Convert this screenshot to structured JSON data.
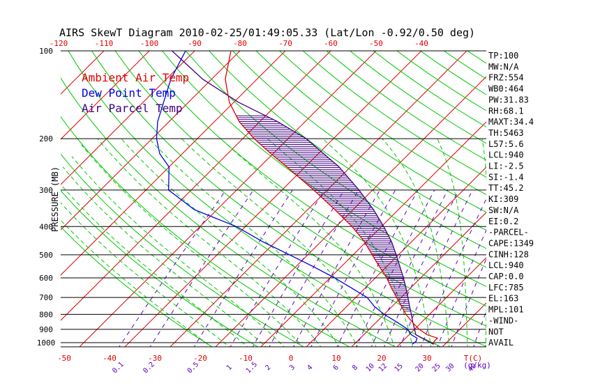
{
  "chart_data": {
    "type": "skewt",
    "title": "AIRS SkewT Diagram 2010-02-25/01:49:05.33 (Lat/Lon -0.92/0.50 deg)",
    "ylabel": "PRESSURE (MB)",
    "pressure_ticks": [
      "100",
      "200",
      "300",
      "400",
      "500",
      "600",
      "700",
      "800",
      "900",
      "1000"
    ],
    "pressure_levels": [
      100,
      200,
      300,
      400,
      500,
      600,
      700,
      800,
      900,
      1000
    ],
    "top_temp_ticks": [
      "-120",
      "-110",
      "-100",
      "-90",
      "-80",
      "-70",
      "-60",
      "-50",
      "-40"
    ],
    "bottom_temp_ticks": [
      "-50",
      "-40",
      "-30",
      "-20",
      "-10",
      "0",
      "10",
      "20",
      "30"
    ],
    "bottom_temp_unit": "T(C)",
    "mixing_ratio_ticks": [
      "0.1",
      "0.2",
      "0.5",
      "1",
      "1.5",
      "2",
      "3",
      "4",
      "6",
      "8",
      "10",
      "12",
      "15",
      "20",
      "25",
      "30",
      "40"
    ],
    "mixing_ratio_unit": "(g/kg)",
    "legend": [
      {
        "label": "Ambient Air Temp",
        "color": "#e00000"
      },
      {
        "label": "Dew Point Temp",
        "color": "#0000e0"
      },
      {
        "label": "Air Parcel Temp",
        "color": "#400080"
      }
    ],
    "colors": {
      "isotherm": "#e00000",
      "dry_adiabat": "#00c800",
      "moist_adiabat": "#00c800",
      "mixing_ratio": "#6000c0",
      "isobar": "#000000",
      "cape_hatch": "#400080"
    },
    "ambient_temp": [
      {
        "p": 1013,
        "t": 27.5
      },
      {
        "p": 990,
        "t": 27.0
      },
      {
        "p": 965,
        "t": 27.0
      },
      {
        "p": 940,
        "t": 24.0
      },
      {
        "p": 900,
        "t": 21.0
      },
      {
        "p": 860,
        "t": 18.5
      },
      {
        "p": 800,
        "t": 14.8
      },
      {
        "p": 750,
        "t": 12.0
      },
      {
        "p": 700,
        "t": 9.0
      },
      {
        "p": 650,
        "t": 5.8
      },
      {
        "p": 600,
        "t": 2.5
      },
      {
        "p": 550,
        "t": -1.5
      },
      {
        "p": 500,
        "t": -5.8
      },
      {
        "p": 450,
        "t": -10.5
      },
      {
        "p": 400,
        "t": -16.5
      },
      {
        "p": 350,
        "t": -24.0
      },
      {
        "p": 300,
        "t": -33.0
      },
      {
        "p": 250,
        "t": -44.0
      },
      {
        "p": 225,
        "t": -50.5
      },
      {
        "p": 200,
        "t": -57.5
      },
      {
        "p": 175,
        "t": -64.5
      },
      {
        "p": 150,
        "t": -71.0
      },
      {
        "p": 125,
        "t": -77.0
      },
      {
        "p": 100,
        "t": -82.0
      }
    ],
    "dewpoint_temp": [
      {
        "p": 1013,
        "t": 22.8
      },
      {
        "p": 990,
        "t": 23.0
      },
      {
        "p": 965,
        "t": 22.5
      },
      {
        "p": 940,
        "t": 20.5
      },
      {
        "p": 900,
        "t": 18.5
      },
      {
        "p": 850,
        "t": 14.5
      },
      {
        "p": 800,
        "t": 10.0
      },
      {
        "p": 750,
        "t": 6.0
      },
      {
        "p": 700,
        "t": 2.5
      },
      {
        "p": 650,
        "t": -3.0
      },
      {
        "p": 600,
        "t": -9.0
      },
      {
        "p": 550,
        "t": -16.0
      },
      {
        "p": 500,
        "t": -24.0
      },
      {
        "p": 450,
        "t": -33.0
      },
      {
        "p": 400,
        "t": -42.0
      },
      {
        "p": 350,
        "t": -55.0
      },
      {
        "p": 300,
        "t": -65.0
      },
      {
        "p": 250,
        "t": -70.0
      },
      {
        "p": 225,
        "t": -75.0
      },
      {
        "p": 200,
        "t": -79.0
      },
      {
        "p": 175,
        "t": -82.5
      },
      {
        "p": 150,
        "t": -85.5
      },
      {
        "p": 125,
        "t": -89.0
      },
      {
        "p": 100,
        "t": -92.0
      }
    ],
    "parcel_temp": [
      {
        "p": 1013,
        "t": 27.5
      },
      {
        "p": 940,
        "t": 21.5
      },
      {
        "p": 900,
        "t": 20.0
      },
      {
        "p": 850,
        "t": 18.0
      },
      {
        "p": 800,
        "t": 16.0
      },
      {
        "p": 750,
        "t": 13.8
      },
      {
        "p": 700,
        "t": 11.5
      },
      {
        "p": 650,
        "t": 9.0
      },
      {
        "p": 600,
        "t": 6.2
      },
      {
        "p": 550,
        "t": 3.0
      },
      {
        "p": 500,
        "t": -0.5
      },
      {
        "p": 450,
        "t": -4.5
      },
      {
        "p": 400,
        "t": -9.5
      },
      {
        "p": 350,
        "t": -15.5
      },
      {
        "p": 300,
        "t": -23.0
      },
      {
        "p": 250,
        "t": -32.5
      },
      {
        "p": 200,
        "t": -46.0
      },
      {
        "p": 175,
        "t": -56.0
      },
      {
        "p": 163,
        "t": -62.0
      },
      {
        "p": 150,
        "t": -69.0
      },
      {
        "p": 125,
        "t": -82.0
      },
      {
        "p": 100,
        "t": -95.0
      }
    ],
    "indices": [
      "TP:100",
      "MW:N/A",
      "FRZ:554",
      "WB0:464",
      "PW:31.83",
      "RH:68.1",
      "MAXT:34.4",
      "TH:5463",
      "L57:5.6",
      "LCL:940",
      "LI:-2.5",
      "SI:-1.4",
      "TT:45.2",
      "KI:309",
      "SW:N/A",
      "EI:0.2",
      "-PARCEL-",
      "CAPE:1349",
      "CINH:128",
      "LCL:940",
      "CAP:0.0",
      "LFC:785",
      "EL:163",
      "MPL:101",
      "-WIND-",
      "NOT",
      "AVAIL"
    ]
  }
}
